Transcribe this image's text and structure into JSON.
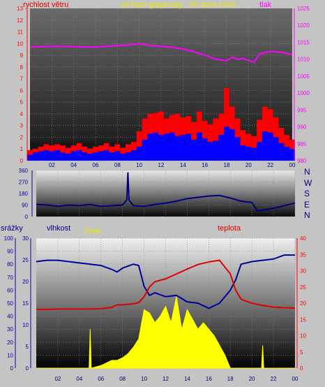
{
  "header": {
    "left_label": "rychlost větru",
    "title": "24 hour graph day : 26 June 2024",
    "right_label": "tlak"
  },
  "wind_dir_labels": [
    "N",
    "W",
    "S",
    "E",
    "N"
  ],
  "lower_labels": {
    "rain": "srážky",
    "humidity": "vlhkost",
    "solar": "Solar",
    "temperature": "teplota"
  },
  "colors": {
    "title": "#e8e800",
    "wind_gust": "#ff0000",
    "wind_avg": "#0000ff",
    "pressure": "#ff00ff",
    "direction": "#000080",
    "humidity": "#00009a",
    "temperature": "#e00000",
    "solar": "#ffff00",
    "left_axis": "#0000aa",
    "right_axis": "#ff00ff",
    "temp_axis": "#ff0000"
  },
  "x_ticks": [
    "02",
    "04",
    "06",
    "08",
    "10",
    "12",
    "14",
    "16",
    "18",
    "20",
    "22",
    "00"
  ],
  "chart_data": [
    {
      "type": "line",
      "title": "24 hour graph day : 26 June 2024",
      "series": [
        {
          "name": "rychlost větru",
          "axis": "left",
          "style": "bars",
          "x": [
            0,
            0.5,
            1,
            1.5,
            2,
            2.5,
            3,
            3.5,
            4,
            4.5,
            5,
            5.5,
            6,
            6.5,
            7,
            7.5,
            8,
            8.5,
            9,
            9.5,
            10,
            10.5,
            11,
            11.5,
            12,
            12.5,
            13,
            13.5,
            14,
            14.5,
            15,
            15.5,
            16,
            16.5,
            17,
            17.5,
            18,
            18.5,
            19,
            19.5,
            20,
            20.5,
            21,
            21.5,
            22,
            22.5,
            23,
            23.5,
            24
          ],
          "values": [
            0.5,
            0.7,
            0.8,
            0.9,
            0.8,
            0.9,
            0.7,
            0.6,
            0.8,
            0.9,
            0.7,
            0.6,
            0.7,
            0.8,
            0.9,
            0.7,
            0.8,
            0.6,
            0.7,
            0.9,
            1.2,
            1.8,
            2.3,
            2.4,
            2.2,
            2.3,
            2.4,
            2.1,
            2.2,
            2.3,
            1.8,
            2.4,
            1.9,
            1.6,
            1.7,
            2.2,
            2.9,
            2.7,
            2.0,
            1.3,
            1.2,
            1.1,
            1.6,
            2.5,
            2.4,
            2.0,
            1.5,
            1.2,
            1.0
          ]
        },
        {
          "name": "wind gust",
          "axis": "left",
          "style": "bars",
          "x": [
            0,
            0.5,
            1,
            1.5,
            2,
            2.5,
            3,
            3.5,
            4,
            4.5,
            5,
            5.5,
            6,
            6.5,
            7,
            7.5,
            8,
            8.5,
            9,
            9.5,
            10,
            10.5,
            11,
            11.5,
            12,
            12.5,
            13,
            13.5,
            14,
            14.5,
            15,
            15.5,
            16,
            16.5,
            17,
            17.5,
            18,
            18.5,
            19,
            19.5,
            20,
            20.5,
            21,
            21.5,
            22,
            22.5,
            23,
            23.5,
            24
          ],
          "values": [
            0.9,
            1.0,
            1.2,
            1.4,
            1.3,
            1.4,
            1.3,
            1.1,
            1.3,
            1.5,
            1.2,
            1.0,
            1.2,
            1.3,
            1.5,
            1.2,
            1.4,
            1.1,
            1.4,
            1.6,
            2.5,
            3.6,
            4.0,
            4.1,
            4.2,
            3.6,
            3.9,
            4.0,
            3.7,
            3.8,
            3.3,
            4.2,
            3.4,
            3.1,
            3.6,
            4.0,
            6.2,
            4.6,
            3.6,
            2.6,
            2.3,
            2.1,
            3.5,
            4.6,
            4.4,
            3.7,
            2.8,
            2.2,
            1.8
          ]
        },
        {
          "name": "tlak",
          "axis": "right",
          "x": [
            0,
            1,
            2,
            3,
            4,
            5,
            6,
            7,
            8,
            9,
            10,
            11,
            12,
            13,
            14,
            15,
            16,
            17,
            18,
            18.5,
            19,
            19.5,
            20,
            20.5,
            21,
            22,
            23,
            24
          ],
          "values": [
            1013.6,
            1013.7,
            1013.8,
            1013.8,
            1013.7,
            1013.6,
            1013.6,
            1013.8,
            1014.0,
            1014.2,
            1014.6,
            1014.0,
            1013.8,
            1013.5,
            1013.0,
            1012.2,
            1011.2,
            1010.0,
            1009.5,
            1010.6,
            1010.0,
            1010.2,
            1009.6,
            1009.1,
            1011.5,
            1012.3,
            1012.0,
            1011.4
          ]
        }
      ],
      "left_ylim": [
        0,
        13
      ],
      "right_ylim": [
        980,
        1025
      ],
      "x_range": [
        0,
        24
      ],
      "grid": true
    },
    {
      "type": "line",
      "series": [
        {
          "name": "direction",
          "axis": "left",
          "x": [
            0,
            1,
            2,
            3,
            4,
            5,
            6,
            7,
            8,
            8.4,
            8.5,
            8.6,
            9,
            10,
            11,
            12,
            13,
            14,
            15,
            16,
            17,
            18,
            19,
            20,
            20.5,
            21,
            22,
            23,
            24
          ],
          "values": [
            95,
            90,
            80,
            90,
            85,
            95,
            80,
            85,
            90,
            130,
            345,
            130,
            85,
            80,
            95,
            105,
            120,
            140,
            150,
            160,
            165,
            145,
            120,
            110,
            45,
            50,
            65,
            85,
            105
          ]
        }
      ],
      "left_ylim": [
        0,
        360
      ],
      "y_ticks": [
        0,
        90,
        180,
        270,
        360
      ],
      "x_range": [
        0,
        24
      ],
      "grid": true
    },
    {
      "type": "line",
      "series": [
        {
          "name": "vlhkost",
          "axis": "humidity",
          "x": [
            0,
            1,
            2,
            3,
            4,
            5,
            6,
            7,
            7.5,
            8,
            9,
            9.5,
            10,
            10.5,
            11,
            12,
            13,
            14,
            15,
            16,
            17,
            18,
            18.5,
            19,
            20,
            21,
            22,
            23,
            24
          ],
          "values": [
            82,
            83,
            83,
            82,
            81,
            80,
            79,
            76,
            74,
            77,
            80,
            79,
            63,
            56,
            58,
            55,
            56,
            51,
            50,
            46,
            50,
            60,
            68,
            80,
            82,
            83,
            84,
            87,
            87
          ]
        },
        {
          "name": "teplota",
          "axis": "temperature",
          "x": [
            0,
            1,
            2,
            3,
            4,
            5,
            6,
            7,
            7.5,
            8,
            9,
            9.5,
            10,
            10.5,
            11,
            12,
            13,
            14,
            15,
            16,
            17,
            18,
            18.5,
            19,
            20,
            21,
            22,
            23,
            24
          ],
          "values": [
            18.1,
            18.1,
            18.2,
            18.2,
            18.2,
            18.2,
            18.3,
            18.7,
            19.5,
            19.5,
            19.8,
            20.2,
            22.0,
            25.0,
            26.6,
            27.5,
            29.0,
            30.5,
            31.9,
            32.7,
            33.2,
            29.0,
            24.0,
            21.2,
            20.0,
            19.3,
            18.8,
            18.6,
            18.5
          ]
        },
        {
          "name": "Solar",
          "axis": "solar",
          "style": "area",
          "x": [
            0,
            4.9,
            5,
            5.1,
            6,
            6.5,
            7,
            7.5,
            8,
            8.5,
            9,
            9.5,
            10,
            10.5,
            11,
            11.5,
            12,
            12.5,
            13,
            13.5,
            14,
            14.5,
            15,
            15.5,
            16,
            16.5,
            17,
            17.5,
            18,
            20.9,
            21,
            21.1,
            24
          ],
          "values": [
            0,
            0,
            6,
            0,
            0.4,
            0.8,
            1.2,
            1.2,
            1.6,
            2.2,
            3.2,
            4.5,
            9,
            8.5,
            7,
            8,
            9.5,
            7,
            11,
            6,
            9,
            7.5,
            6,
            7,
            6,
            5,
            3.5,
            2,
            0,
            0,
            3.5,
            0,
            0
          ]
        }
      ],
      "rain_ylim": [
        0,
        100
      ],
      "humidity_ylim": [
        0,
        30
      ],
      "solar_ylim": [
        0,
        20
      ],
      "temperature_ylim": [
        0,
        40
      ],
      "x_range": [
        0,
        24
      ],
      "grid": true
    }
  ]
}
